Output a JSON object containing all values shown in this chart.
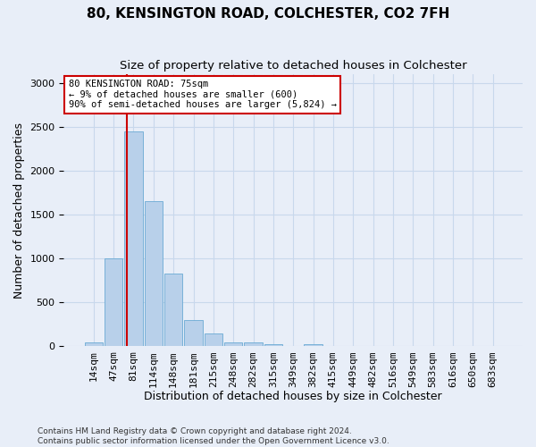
{
  "title": "80, KENSINGTON ROAD, COLCHESTER, CO2 7FH",
  "subtitle": "Size of property relative to detached houses in Colchester",
  "xlabel": "Distribution of detached houses by size in Colchester",
  "ylabel": "Number of detached properties",
  "bar_labels": [
    "14sqm",
    "47sqm",
    "81sqm",
    "114sqm",
    "148sqm",
    "181sqm",
    "215sqm",
    "248sqm",
    "282sqm",
    "315sqm",
    "349sqm",
    "382sqm",
    "415sqm",
    "449sqm",
    "482sqm",
    "516sqm",
    "549sqm",
    "583sqm",
    "616sqm",
    "650sqm",
    "683sqm"
  ],
  "bar_values": [
    50,
    1000,
    2450,
    1650,
    830,
    300,
    150,
    50,
    50,
    30,
    0,
    30,
    0,
    0,
    0,
    0,
    0,
    0,
    0,
    0,
    0
  ],
  "bar_color": "#b8d0ea",
  "bar_edge_color": "#6aaad4",
  "grid_color": "#c8d8ec",
  "background_color": "#e8eef8",
  "vline_color": "#cc0000",
  "vline_x": 1.65,
  "annotation_text": "80 KENSINGTON ROAD: 75sqm\n← 9% of detached houses are smaller (600)\n90% of semi-detached houses are larger (5,824) →",
  "annotation_box_color": "#ffffff",
  "annotation_box_edge_color": "#cc0000",
  "footer_line1": "Contains HM Land Registry data © Crown copyright and database right 2024.",
  "footer_line2": "Contains public sector information licensed under the Open Government Licence v3.0.",
  "ylim": [
    0,
    3100
  ],
  "yticks": [
    0,
    500,
    1000,
    1500,
    2000,
    2500,
    3000
  ],
  "title_fontsize": 11,
  "subtitle_fontsize": 9.5,
  "ylabel_fontsize": 9,
  "xlabel_fontsize": 9,
  "tick_fontsize": 8,
  "annot_fontsize": 7.5,
  "footer_fontsize": 6.5
}
